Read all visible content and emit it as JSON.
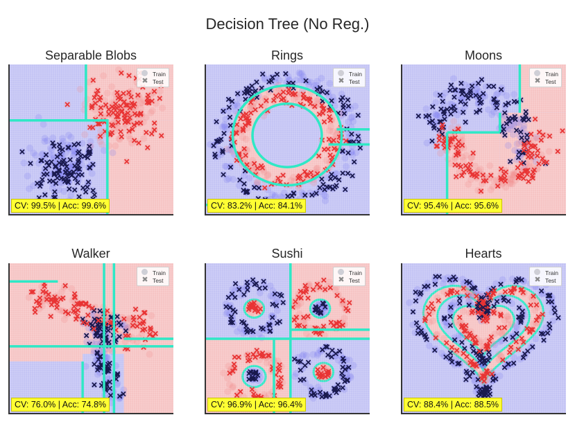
{
  "figure": {
    "suptitle": "Decision Tree (No Reg.)"
  },
  "colors": {
    "class0_region": "#c4c4f4",
    "class1_region": "#f6c4c4",
    "class0_point": "#1a1a4e",
    "class1_point": "#e83434",
    "boundary": "#2fe8c6",
    "score_box": "#ffff33"
  },
  "legend": {
    "train_label": "Train",
    "test_label": "Test"
  },
  "chart_data": [
    {
      "type": "scatter",
      "title": "Separable Blobs",
      "dataset": "blobs",
      "score": "CV: 99.5% | Acc: 99.6%"
    },
    {
      "type": "scatter",
      "title": "Rings",
      "dataset": "rings",
      "score": "CV: 83.2% | Acc: 84.1%"
    },
    {
      "type": "scatter",
      "title": "Moons",
      "dataset": "moons",
      "score": "CV: 95.4% | Acc: 95.6%"
    },
    {
      "type": "scatter",
      "title": "Walker",
      "dataset": "walker",
      "score": "CV: 76.0% | Acc: 74.8%"
    },
    {
      "type": "scatter",
      "title": "Sushi",
      "dataset": "sushi",
      "score": "CV: 96.9% | Acc: 96.4%"
    },
    {
      "type": "scatter",
      "title": "Hearts",
      "dataset": "hearts",
      "score": "CV: 88.4% | Acc: 88.5%"
    }
  ]
}
